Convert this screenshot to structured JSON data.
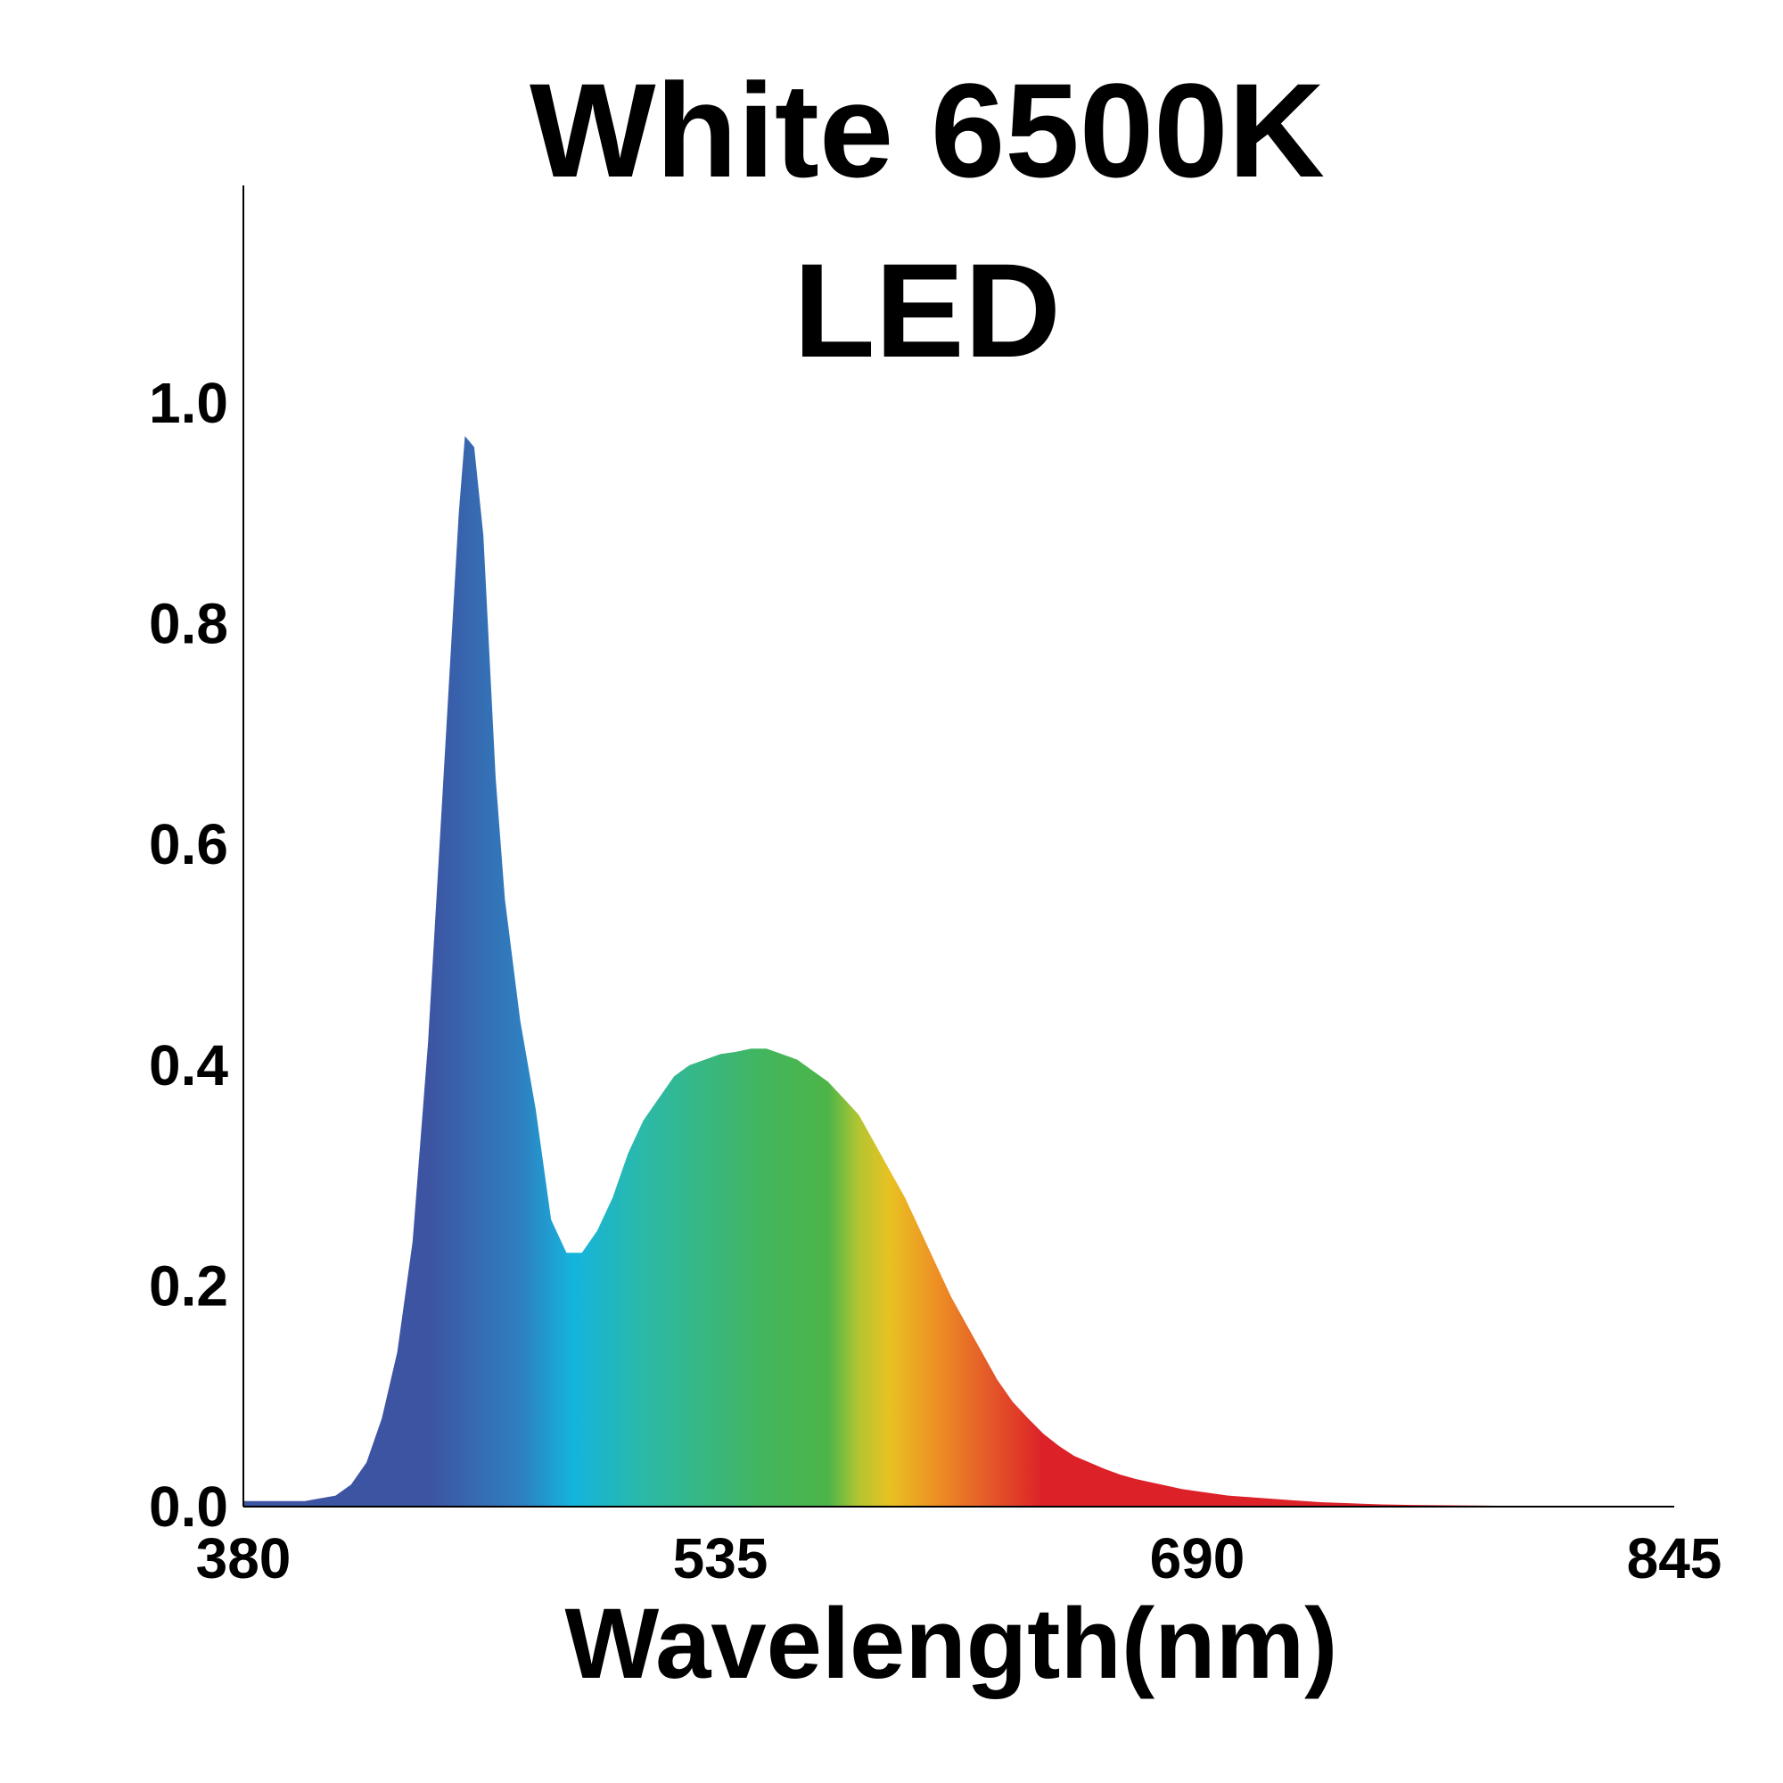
{
  "chart_data": {
    "type": "area",
    "title": [
      "White 6500K",
      "LED"
    ],
    "xlabel": "Wavelength(nm)",
    "ylabel": "",
    "xlim": [
      380,
      845
    ],
    "ylim": [
      0,
      1.0
    ],
    "x_ticks": [
      "380",
      "535",
      "690",
      "845"
    ],
    "y_ticks": [
      "0.0",
      "0.2",
      "0.4",
      "0.6",
      "0.8",
      "1.0"
    ],
    "grid": false,
    "legend": "none",
    "series": [
      {
        "x": [
          380,
          400,
          410,
          415,
          420,
          425,
          430,
          435,
          440,
          445,
          450,
          452,
          455,
          458,
          462,
          465,
          470,
          475,
          480,
          485,
          490,
          495,
          500,
          505,
          510,
          515,
          520,
          525,
          530,
          535,
          540,
          545,
          550,
          555,
          560,
          565,
          570,
          575,
          580,
          585,
          590,
          595,
          600,
          605,
          610,
          615,
          620,
          625,
          630,
          635,
          640,
          645,
          650,
          655,
          660,
          665,
          670,
          675,
          680,
          685,
          690,
          700,
          710,
          720,
          730,
          740,
          750,
          760,
          780,
          800,
          820,
          845
        ],
        "y": [
          0.005,
          0.005,
          0.01,
          0.02,
          0.04,
          0.08,
          0.14,
          0.24,
          0.42,
          0.66,
          0.9,
          0.97,
          0.96,
          0.88,
          0.66,
          0.55,
          0.44,
          0.36,
          0.26,
          0.23,
          0.23,
          0.25,
          0.28,
          0.32,
          0.35,
          0.37,
          0.39,
          0.4,
          0.405,
          0.41,
          0.412,
          0.415,
          0.415,
          0.41,
          0.405,
          0.395,
          0.385,
          0.37,
          0.355,
          0.33,
          0.305,
          0.28,
          0.25,
          0.22,
          0.19,
          0.165,
          0.14,
          0.115,
          0.095,
          0.08,
          0.066,
          0.055,
          0.046,
          0.04,
          0.034,
          0.029,
          0.025,
          0.022,
          0.019,
          0.016,
          0.014,
          0.01,
          0.008,
          0.006,
          0.004,
          0.003,
          0.002,
          0.0015,
          0.001,
          0.0005,
          0.0002,
          0.0
        ]
      }
    ],
    "gradient_colors": [
      {
        "x": 380,
        "color": "#3d54a2"
      },
      {
        "x": 440,
        "color": "#3d54a2"
      },
      {
        "x": 470,
        "color": "#2f7fc0"
      },
      {
        "x": 487,
        "color": "#14b4dd"
      },
      {
        "x": 510,
        "color": "#2bb9a8"
      },
      {
        "x": 550,
        "color": "#43b55b"
      },
      {
        "x": 570,
        "color": "#4cb548"
      },
      {
        "x": 580,
        "color": "#b4c531"
      },
      {
        "x": 590,
        "color": "#e8c123"
      },
      {
        "x": 605,
        "color": "#ee9024"
      },
      {
        "x": 622,
        "color": "#e45a29"
      },
      {
        "x": 640,
        "color": "#dc2128"
      },
      {
        "x": 845,
        "color": "#dc2128"
      }
    ],
    "axis_color": "#000000"
  }
}
